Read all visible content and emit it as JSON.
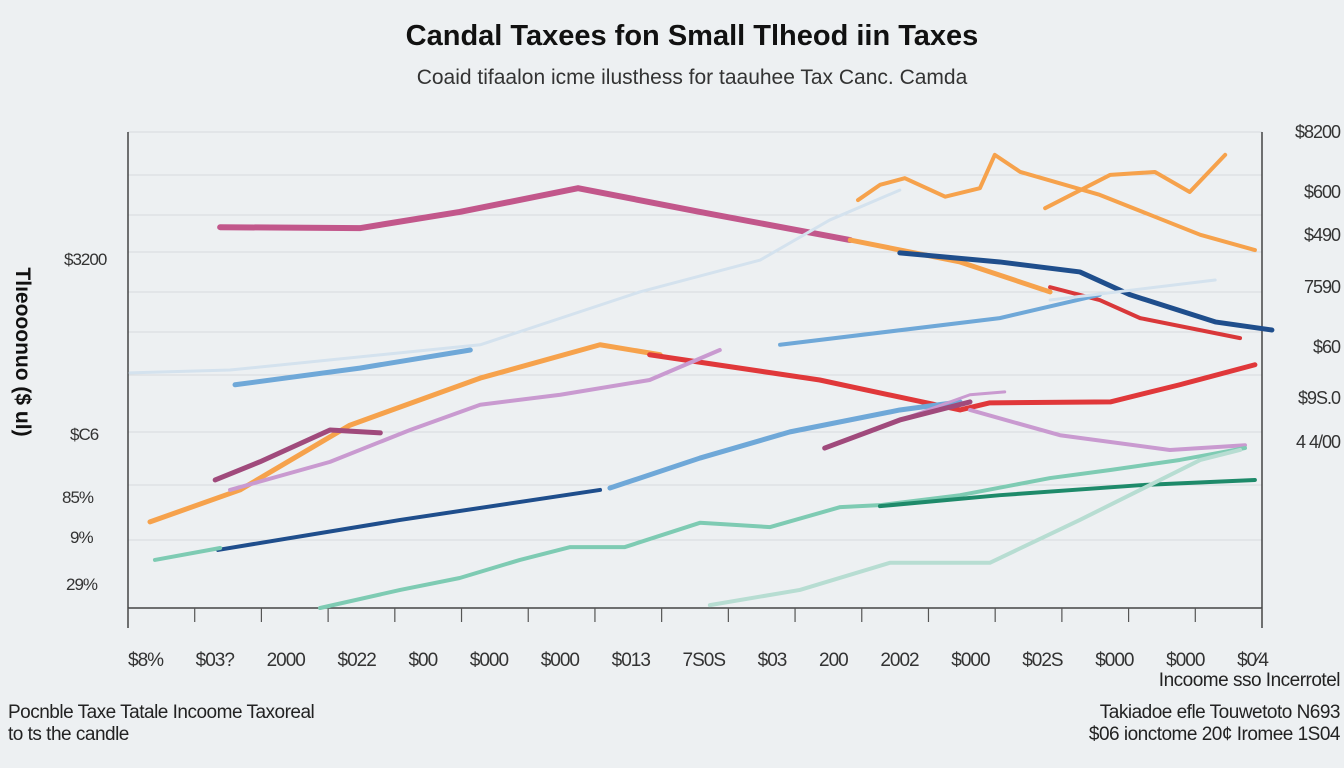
{
  "chart_data": {
    "type": "line",
    "title": "Candal Taxees fon  Small Tlheod iin Taxes",
    "subtitle": "Coaid tifaalon icme ilusthess for taauhee Tax Canc. Camda",
    "ylabel": "Tlıeooonuo ($ ul)",
    "xlim": [
      0,
      16
    ],
    "ylim": [
      0,
      100
    ],
    "grid": true,
    "x_tick_labels": [
      "$8%",
      "$03?",
      "2000",
      "$022",
      "$00",
      "$000",
      "$000",
      "$013",
      "7S0S",
      "$03",
      "200",
      "2002",
      "$000",
      "$02S",
      "$000",
      "$000",
      "$0⁄4"
    ],
    "left_tick_labels": [
      "$3200",
      "$C6",
      "85%",
      "9%",
      "29%"
    ],
    "right_tick_labels": [
      "$8200",
      "$600",
      "$490",
      "7590",
      "$60",
      "$9S.0",
      "4 4/00"
    ],
    "series": [
      {
        "color": "#c2578b",
        "width": 6,
        "points": [
          [
            1.3,
            80
          ],
          [
            3.27,
            79.8
          ],
          [
            4.68,
            83.2
          ],
          [
            6.35,
            88.2
          ],
          [
            8.07,
            83.2
          ],
          [
            10.19,
            77.3
          ]
        ]
      },
      {
        "color": "#f6a24c",
        "width": 5,
        "points": [
          [
            0.31,
            18.1
          ],
          [
            1.58,
            24.8
          ],
          [
            3.13,
            38.4
          ],
          [
            4.97,
            48.3
          ],
          [
            6.66,
            55.3
          ],
          [
            7.51,
            53.2
          ]
        ]
      },
      {
        "color": "#f6a24c",
        "width": 5,
        "points": [
          [
            10.19,
            77.3
          ],
          [
            11.74,
            72.7
          ],
          [
            13.01,
            66.4
          ]
        ]
      },
      {
        "color": "#f6a24c",
        "width": 4,
        "points": [
          [
            10.3,
            85.7
          ],
          [
            10.61,
            88.9
          ],
          [
            10.96,
            90.3
          ],
          [
            11.53,
            86.4
          ],
          [
            12.02,
            88.2
          ],
          [
            12.23,
            95.2
          ],
          [
            12.59,
            91.6
          ],
          [
            13.71,
            86.8
          ],
          [
            14.42,
            82.6
          ],
          [
            15.13,
            78.4
          ],
          [
            15.9,
            75.2
          ]
        ]
      },
      {
        "color": "#f6a24c",
        "width": 4,
        "points": [
          [
            12.94,
            84
          ],
          [
            13.86,
            91
          ],
          [
            14.49,
            91.6
          ],
          [
            14.98,
            87.4
          ],
          [
            15.48,
            95.2
          ]
        ]
      },
      {
        "color": "#e0383a",
        "width": 5,
        "points": [
          [
            7.36,
            53.2
          ],
          [
            9.76,
            47.9
          ],
          [
            11.74,
            41.6
          ],
          [
            12.16,
            43.1
          ],
          [
            13.86,
            43.3
          ],
          [
            14.84,
            46.9
          ],
          [
            15.9,
            51.1
          ]
        ]
      },
      {
        "color": "#d9383a",
        "width": 4,
        "points": [
          [
            13.01,
            67.4
          ],
          [
            13.71,
            64.7
          ],
          [
            14.28,
            60.9
          ],
          [
            15.69,
            56.7
          ]
        ]
      },
      {
        "color": "#1f4e8c",
        "width": 4,
        "points": [
          [
            1.27,
            12.2
          ],
          [
            3.84,
            18.5
          ],
          [
            6.66,
            24.8
          ]
        ]
      },
      {
        "color": "#1f4e8c",
        "width": 5,
        "points": [
          [
            10.89,
            74.6
          ],
          [
            12.3,
            72.7
          ],
          [
            13.43,
            70.6
          ],
          [
            14.14,
            65.8
          ],
          [
            15.34,
            60.1
          ],
          [
            16.14,
            58.4
          ]
        ]
      },
      {
        "color": "#6fa8d8",
        "width": 5,
        "points": [
          [
            1.51,
            46.9
          ],
          [
            3.27,
            50.4
          ],
          [
            4.83,
            54.2
          ]
        ]
      },
      {
        "color": "#6fa8d8",
        "width": 4,
        "points": [
          [
            9.2,
            55.3
          ],
          [
            12.3,
            60.9
          ],
          [
            13.71,
            65.8
          ]
        ]
      },
      {
        "color": "#6fa8d8",
        "width": 5,
        "points": [
          [
            6.8,
            25.2
          ],
          [
            8.07,
            31.5
          ],
          [
            9.34,
            37
          ],
          [
            10.89,
            41.6
          ],
          [
            11.74,
            43.3
          ]
        ]
      },
      {
        "color": "#c99ad0",
        "width": 4,
        "points": [
          [
            1.44,
            24.8
          ],
          [
            2.85,
            30.7
          ],
          [
            3.98,
            37.4
          ],
          [
            4.97,
            42.7
          ],
          [
            6.1,
            44.8
          ],
          [
            7.36,
            47.9
          ],
          [
            8.35,
            54.2
          ]
        ]
      },
      {
        "color": "#c99ad0",
        "width": 4,
        "points": [
          [
            11.88,
            41.6
          ],
          [
            13.15,
            36.3
          ],
          [
            14.7,
            33.2
          ],
          [
            15.76,
            34.2
          ]
        ]
      },
      {
        "color": "#c99ad0",
        "width": 3,
        "points": [
          [
            10.89,
            39.5
          ],
          [
            11.88,
            44.8
          ],
          [
            12.37,
            45.4
          ]
        ]
      },
      {
        "color": "#a04a7c",
        "width": 5,
        "points": [
          [
            1.23,
            26.9
          ],
          [
            1.86,
            30.7
          ],
          [
            2.85,
            37.4
          ],
          [
            3.56,
            36.8
          ]
        ]
      },
      {
        "color": "#a04a7c",
        "width": 5,
        "points": [
          [
            9.83,
            33.6
          ],
          [
            10.89,
            39.5
          ],
          [
            11.88,
            43.3
          ]
        ]
      },
      {
        "color": "#7ecbb3",
        "width": 4,
        "points": [
          [
            0.38,
            10.1
          ],
          [
            1.3,
            12.6
          ]
        ]
      },
      {
        "color": "#7ecbb3",
        "width": 4,
        "points": [
          [
            2.71,
            0
          ],
          [
            3.84,
            3.8
          ],
          [
            4.68,
            6.3
          ],
          [
            5.53,
            10.1
          ],
          [
            6.24,
            12.8
          ],
          [
            7.01,
            12.8
          ],
          [
            8.07,
            17.9
          ],
          [
            9.06,
            17
          ],
          [
            10.05,
            21.2
          ],
          [
            10.61,
            21.6
          ],
          [
            11.74,
            23.7
          ],
          [
            13.01,
            27.3
          ],
          [
            13.86,
            29
          ],
          [
            14.84,
            31.1
          ],
          [
            15.76,
            33.6
          ]
        ]
      },
      {
        "color": "#1e8a6a",
        "width": 4,
        "points": [
          [
            10.61,
            21.4
          ],
          [
            12.3,
            23.7
          ],
          [
            14.28,
            25.8
          ],
          [
            15.9,
            26.9
          ]
        ]
      },
      {
        "color": "#b7ddd2",
        "width": 4,
        "points": [
          [
            8.21,
            0.6
          ],
          [
            9.48,
            3.8
          ],
          [
            10.75,
            9.5
          ],
          [
            12.16,
            9.5
          ],
          [
            13.43,
            18.5
          ],
          [
            15.13,
            31.1
          ],
          [
            15.69,
            33.2
          ]
        ]
      },
      {
        "color": "#d4e2ee",
        "width": 3,
        "points": [
          [
            0.03,
            49.4
          ],
          [
            1.44,
            50
          ],
          [
            4.97,
            55.3
          ],
          [
            7.22,
            66.4
          ],
          [
            8.92,
            73.1
          ],
          [
            9.9,
            81.5
          ],
          [
            10.89,
            87.8
          ]
        ]
      },
      {
        "color": "#d4e2ee",
        "width": 3,
        "points": [
          [
            13.01,
            64.7
          ],
          [
            15.34,
            68.9
          ]
        ]
      }
    ]
  },
  "notes": {
    "right_top": "Incoome sso Incerrotel",
    "left_line1": "Pocnble Taxe Tatale Incoome Taxoreal",
    "left_line2": "to ts the candle",
    "right_line1": "Takiadoe efle Touwetoto N693",
    "right_line2": "$06 ionctome 20¢ Iromee 1S04"
  }
}
